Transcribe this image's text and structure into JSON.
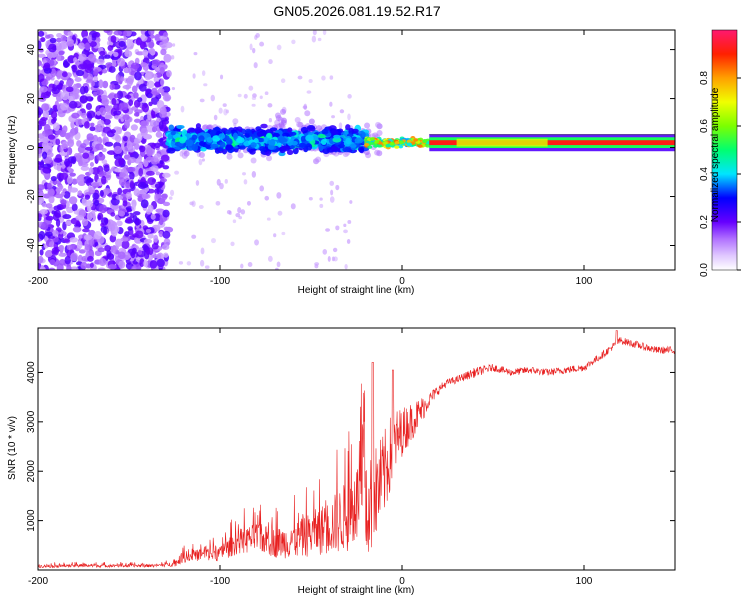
{
  "figure_title": "GN05.2026.081.19.52.R17",
  "chart_data": [
    {
      "type": "heatmap",
      "xlabel": "Height of straight line (km)",
      "ylabel": "Frequency (Hz)",
      "xlim": [
        -200,
        150
      ],
      "ylim": [
        -50,
        48
      ],
      "xticks": [
        -200,
        -100,
        0,
        100
      ],
      "xtick_labels": [
        "-200",
        "-100",
        "0",
        "100"
      ],
      "yticks": [
        -40,
        -20,
        0,
        20,
        40
      ],
      "ytick_labels": [
        "-40",
        "-20",
        "0",
        "20",
        "40"
      ],
      "colorbar": {
        "label": "Normalized spectral amplitude",
        "range": [
          0,
          1
        ],
        "ticks": [
          0,
          0.2,
          0.4,
          0.6,
          0.8
        ],
        "tick_labels": [
          "0.0",
          "0.2",
          "0.4",
          "0.6",
          "0.8"
        ]
      },
      "features": [
        {
          "name": "noise-field",
          "x_range": [
            -200,
            -128
          ],
          "freq_range": [
            -50,
            48
          ],
          "amplitude": 0.1
        },
        {
          "name": "broad-band",
          "x_range": [
            -128,
            -20
          ],
          "freq_center": 3,
          "freq_halfwidth": 8,
          "amplitude": 0.3
        },
        {
          "name": "transition",
          "x_range": [
            -20,
            15
          ],
          "freq_center": 2,
          "freq_halfwidth": 3,
          "amplitude": 0.75
        },
        {
          "name": "carrier-line",
          "x_range": [
            15,
            150
          ],
          "freq_center": 2,
          "freq_halfwidth": 2,
          "amplitude": 0.95
        }
      ],
      "colors": {
        "low": "#cc99ff",
        "mid": "#7722ff",
        "high": "#ff2222"
      }
    },
    {
      "type": "line",
      "xlabel": "Height of straight line (km)",
      "ylabel": "SNR (10 * v/v)",
      "xlim": [
        -200,
        150
      ],
      "ylim": [
        0,
        4900
      ],
      "xticks": [
        -200,
        -100,
        0,
        100
      ],
      "xtick_labels": [
        "-200",
        "-100",
        "0",
        "100"
      ],
      "yticks": [
        1000,
        2000,
        3000,
        4000
      ],
      "ytick_labels": [
        "1000",
        "2000",
        "3000",
        "4000"
      ],
      "color": "#e82020",
      "series": [
        {
          "name": "SNR",
          "x": [
            -200,
            -180,
            -160,
            -140,
            -130,
            -125,
            -120,
            -110,
            -100,
            -90,
            -80,
            -70,
            -60,
            -50,
            -40,
            -30,
            -25,
            -20,
            -15,
            -10,
            -5,
            0,
            5,
            10,
            15,
            20,
            25,
            30,
            40,
            50,
            60,
            70,
            80,
            90,
            100,
            110,
            120,
            130,
            140,
            150
          ],
          "baseline": [
            60,
            70,
            70,
            70,
            80,
            100,
            200,
            250,
            250,
            450,
            500,
            400,
            400,
            500,
            600,
            700,
            900,
            1100,
            1500,
            1900,
            2500,
            2800,
            3000,
            3200,
            3450,
            3650,
            3800,
            3850,
            4000,
            4100,
            4000,
            4050,
            4000,
            4050,
            4100,
            4350,
            4650,
            4550,
            4450,
            4450
          ],
          "spread": [
            60,
            60,
            60,
            60,
            70,
            120,
            200,
            250,
            300,
            500,
            600,
            600,
            700,
            900,
            1100,
            1500,
            1700,
            1900,
            2000,
            1800,
            1500,
            1000,
            800,
            600,
            300,
            200,
            150,
            150,
            200,
            150,
            150,
            150,
            150,
            150,
            150,
            150,
            150,
            150,
            150,
            150
          ],
          "peaks": [
            {
              "x": -16,
              "y": 4200
            },
            {
              "x": -5,
              "y": 4050
            },
            {
              "x": 118,
              "y": 4850
            }
          ]
        }
      ]
    }
  ]
}
